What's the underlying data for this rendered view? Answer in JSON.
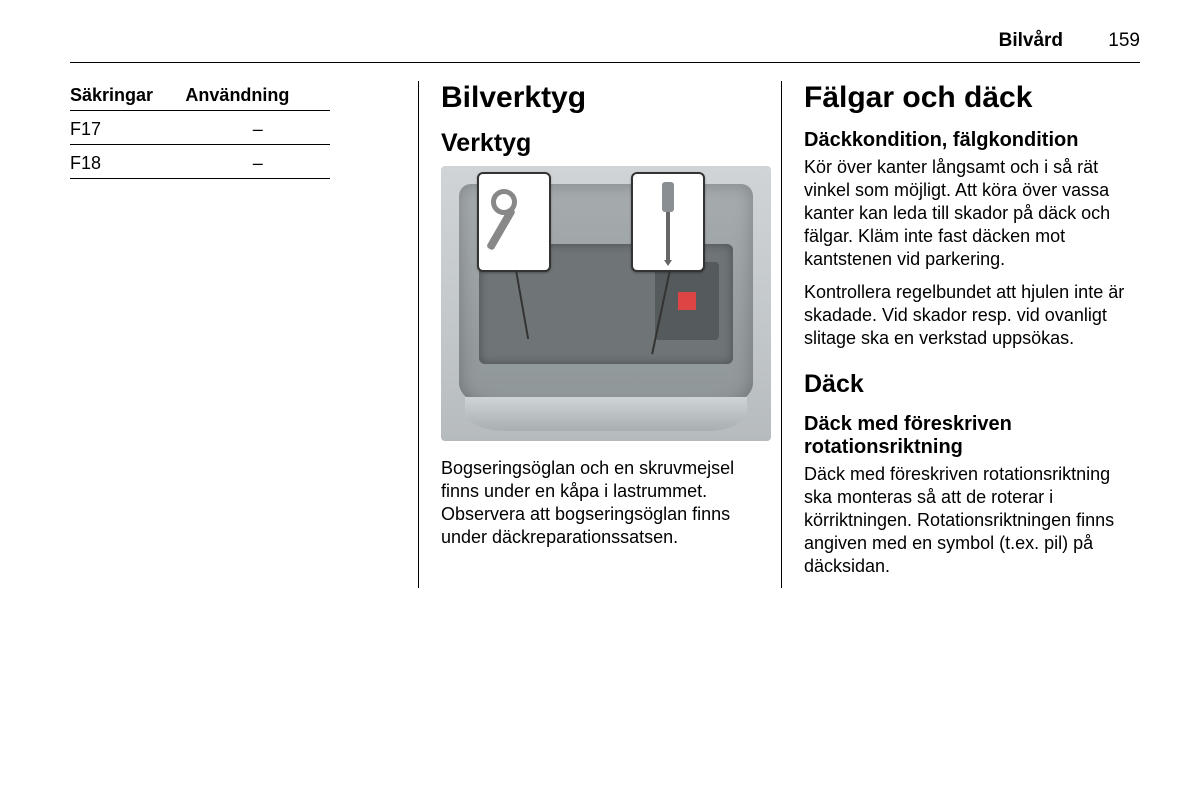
{
  "header": {
    "section": "Bilvård",
    "page_number": "159"
  },
  "fuse_table": {
    "columns": [
      "Säkringar",
      "Användning"
    ],
    "rows": [
      {
        "fuse": "F17",
        "use": "–"
      },
      {
        "fuse": "F18",
        "use": "–"
      }
    ]
  },
  "col2": {
    "h1": "Bilverktyg",
    "h2": "Verktyg",
    "illustration": {
      "alt": "Lastrum med bogseringsögla och skruvmejsel",
      "callouts": [
        "tow-eye",
        "screwdriver"
      ],
      "background_gradient": [
        "#d0d4d6",
        "#b6bbbd"
      ]
    },
    "paragraph": "Bogseringsöglan och en skruvmejsel finns under en kåpa i lastrummet. Observera att bogseringsöglan finns under däckreparationssatsen."
  },
  "col3": {
    "h1": "Fälgar och däck",
    "sections": [
      {
        "h3": "Däckkondition, fälgkondition",
        "paragraphs": [
          "Kör över kanter långsamt och i så rät vinkel som möjligt. Att köra över vassa kanter kan leda till skador på däck och fälgar. Kläm inte fast däcken mot kantstenen vid parkering.",
          "Kontrollera regelbundet att hjulen inte är skadade. Vid skador resp. vid ovanligt slitage ska en verkstad upp­sökas."
        ]
      }
    ],
    "h2": "Däck",
    "sections2": [
      {
        "h3": "Däck med föreskriven rotationsriktning",
        "paragraphs": [
          "Däck med föreskriven rotationsrikt­ning ska monteras så att de roterar i körriktningen. Rotationsriktningen finns angiven med en symbol (t.ex. pil) på däcksidan."
        ]
      }
    ]
  },
  "styles": {
    "body_font": "Arial",
    "text_color": "#000000",
    "rule_color": "#000000",
    "h1_fontsize_pt": 22,
    "h2_fontsize_pt": 18,
    "h3_fontsize_pt": 15,
    "body_fontsize_pt": 13
  }
}
